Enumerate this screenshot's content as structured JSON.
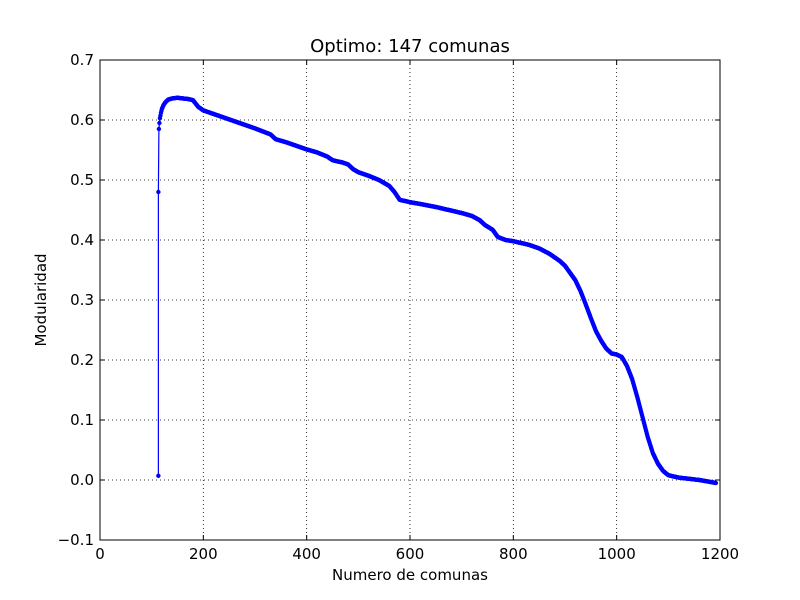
{
  "chart_data": {
    "type": "line",
    "title": "Optimo: 147 comunas",
    "xlabel": "Numero de comunas",
    "ylabel": "Modularidad",
    "xlim": [
      0,
      1200
    ],
    "ylim": [
      -0.1,
      0.7
    ],
    "xticks": [
      0,
      200,
      400,
      600,
      800,
      1000,
      1200
    ],
    "xtick_labels": [
      "0",
      "200",
      "400",
      "600",
      "800",
      "1000",
      "1200"
    ],
    "yticks": [
      -0.1,
      0.0,
      0.1,
      0.2,
      0.3,
      0.4,
      0.5,
      0.6,
      0.7
    ],
    "ytick_labels": [
      "−0.1",
      "0.0",
      "0.1",
      "0.2",
      "0.3",
      "0.4",
      "0.5",
      "0.6",
      "0.7"
    ],
    "grid": true,
    "series": [
      {
        "color": "#0000ff",
        "marker": "circle",
        "points": [
          [
            113,
            0.007
          ],
          [
            113,
            0.48
          ],
          [
            114,
            0.585
          ],
          [
            115,
            0.595
          ],
          [
            116,
            0.603
          ],
          [
            118,
            0.612
          ],
          [
            120,
            0.619
          ],
          [
            123,
            0.625
          ],
          [
            127,
            0.63
          ],
          [
            132,
            0.634
          ],
          [
            140,
            0.636
          ],
          [
            150,
            0.637
          ],
          [
            160,
            0.636
          ],
          [
            170,
            0.635
          ],
          [
            180,
            0.633
          ],
          [
            190,
            0.622
          ],
          [
            200,
            0.616
          ],
          [
            220,
            0.61
          ],
          [
            250,
            0.601
          ],
          [
            280,
            0.592
          ],
          [
            300,
            0.586
          ],
          [
            330,
            0.576
          ],
          [
            340,
            0.568
          ],
          [
            360,
            0.563
          ],
          [
            380,
            0.557
          ],
          [
            400,
            0.551
          ],
          [
            420,
            0.546
          ],
          [
            440,
            0.539
          ],
          [
            450,
            0.533
          ],
          [
            470,
            0.529
          ],
          [
            480,
            0.526
          ],
          [
            490,
            0.518
          ],
          [
            500,
            0.513
          ],
          [
            520,
            0.507
          ],
          [
            540,
            0.5
          ],
          [
            560,
            0.49
          ],
          [
            570,
            0.48
          ],
          [
            580,
            0.467
          ],
          [
            600,
            0.463
          ],
          [
            620,
            0.46
          ],
          [
            650,
            0.455
          ],
          [
            680,
            0.449
          ],
          [
            700,
            0.445
          ],
          [
            720,
            0.44
          ],
          [
            735,
            0.433
          ],
          [
            745,
            0.425
          ],
          [
            760,
            0.417
          ],
          [
            770,
            0.405
          ],
          [
            785,
            0.4
          ],
          [
            800,
            0.398
          ],
          [
            830,
            0.392
          ],
          [
            850,
            0.386
          ],
          [
            870,
            0.377
          ],
          [
            890,
            0.365
          ],
          [
            900,
            0.357
          ],
          [
            910,
            0.345
          ],
          [
            920,
            0.333
          ],
          [
            930,
            0.315
          ],
          [
            940,
            0.293
          ],
          [
            950,
            0.27
          ],
          [
            960,
            0.248
          ],
          [
            970,
            0.232
          ],
          [
            980,
            0.219
          ],
          [
            990,
            0.211
          ],
          [
            1000,
            0.209
          ],
          [
            1010,
            0.205
          ],
          [
            1020,
            0.19
          ],
          [
            1030,
            0.168
          ],
          [
            1040,
            0.138
          ],
          [
            1050,
            0.105
          ],
          [
            1060,
            0.072
          ],
          [
            1070,
            0.045
          ],
          [
            1080,
            0.027
          ],
          [
            1090,
            0.015
          ],
          [
            1100,
            0.008
          ],
          [
            1120,
            0.004
          ],
          [
            1140,
            0.002
          ],
          [
            1160,
            0.0
          ],
          [
            1180,
            -0.003
          ],
          [
            1192,
            -0.005
          ]
        ]
      }
    ]
  }
}
